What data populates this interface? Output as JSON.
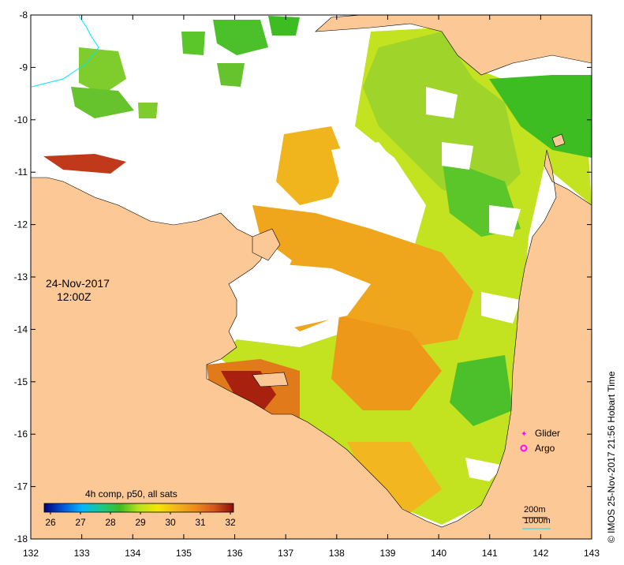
{
  "map": {
    "date": "24-Nov-2017",
    "time": "12:00Z",
    "colorbar_title": "4h comp, p50, all sats",
    "colorbar_ticks": [
      "26",
      "27",
      "28",
      "29",
      "30",
      "31",
      "32"
    ],
    "colorbar_colors": [
      "#00007a",
      "#0057d9",
      "#00b7ff",
      "#19c98c",
      "#3dbd22",
      "#b9e31c",
      "#f5e600",
      "#f4b31a",
      "#ee8a1a",
      "#d4551a",
      "#8b0c0c"
    ],
    "x_ticks": [
      "132",
      "133",
      "134",
      "135",
      "136",
      "137",
      "138",
      "139",
      "140",
      "141",
      "142",
      "143"
    ],
    "y_ticks": [
      "-8",
      "-9",
      "-10",
      "-11",
      "-12",
      "-13",
      "-14",
      "-15",
      "-16",
      "-17",
      "-18"
    ],
    "credit": "© IMOS 25-Nov-2017 21:56 Hobart Time",
    "legend": {
      "glider": "Glider",
      "argo": "Argo",
      "contour1": "200m",
      "contour2": "1000m"
    },
    "colors": {
      "land": "#fbc896",
      "ocean_nodata": "#ffffff",
      "marker": "#ff00ff",
      "contour": "#00e5ff"
    }
  }
}
